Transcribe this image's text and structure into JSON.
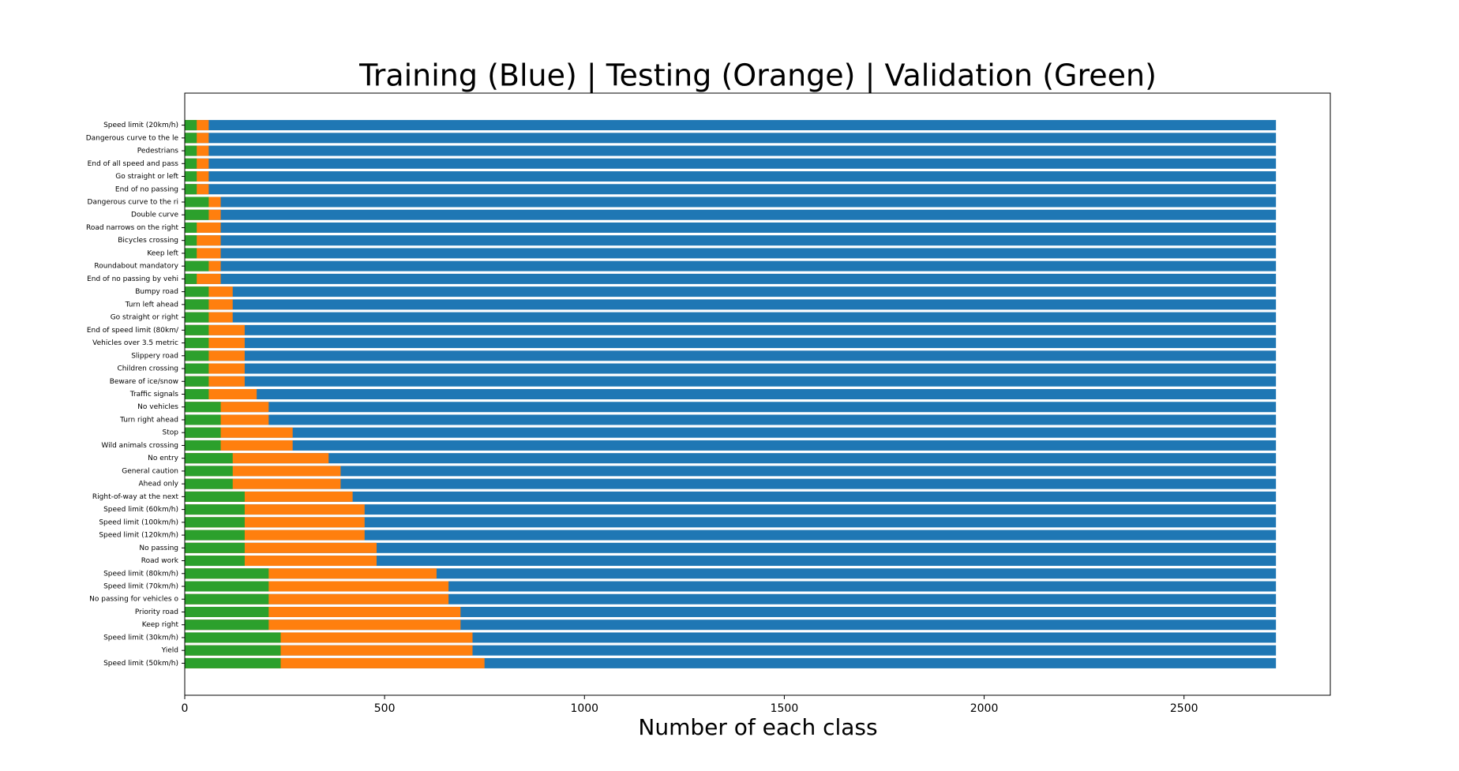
{
  "chart_data": {
    "type": "barh_overlay",
    "title": "Training (Blue) | Testing (Orange) | Validation (Green)",
    "xlabel": "Number of each class",
    "categories": [
      "Speed limit (20km/h)",
      "Dangerous curve to the le",
      "Pedestrians",
      "End of all speed and pass",
      "Go straight or left",
      "End of no passing",
      "Dangerous curve to the ri",
      "Double curve",
      "Road narrows on the right",
      "Bicycles crossing",
      "Keep left",
      "Roundabout mandatory",
      "End of no passing by vehi",
      "Bumpy road",
      "Turn left ahead",
      "Go straight or right",
      "End of speed limit (80km/",
      "Vehicles over 3.5 metric ",
      "Slippery road",
      "Children crossing",
      "Beware of ice/snow",
      "Traffic signals",
      "No vehicles",
      "Turn right ahead",
      "Stop",
      "Wild animals crossing",
      "No entry",
      "General caution",
      "Ahead only",
      "Right-of-way at the next ",
      "Speed limit (60km/h)",
      "Speed limit (100km/h)",
      "Speed limit (120km/h)",
      "No passing",
      "Road work",
      "Speed limit (80km/h)",
      "Speed limit (70km/h)",
      "No passing for vehicles o",
      "Priority road",
      "Keep right",
      "Speed limit (30km/h)",
      "Yield",
      "Speed limit (50km/h)"
    ],
    "series": [
      {
        "color": "#1f77b4",
        "values": [
          2730,
          2730,
          2730,
          2730,
          2730,
          2730,
          2730,
          2730,
          2730,
          2730,
          2730,
          2730,
          2730,
          2730,
          2730,
          2730,
          2730,
          2730,
          2730,
          2730,
          2730,
          2730,
          2730,
          2730,
          2730,
          2730,
          2730,
          2730,
          2730,
          2730,
          2730,
          2730,
          2730,
          2730,
          2730,
          2730,
          2730,
          2730,
          2730,
          2730,
          2730,
          2730,
          2730
        ]
      },
      {
        "color": "#ff7f0e",
        "values": [
          60,
          60,
          60,
          60,
          60,
          60,
          90,
          90,
          90,
          90,
          90,
          90,
          90,
          120,
          120,
          120,
          150,
          150,
          150,
          150,
          150,
          180,
          210,
          210,
          270,
          270,
          360,
          390,
          390,
          420,
          450,
          450,
          450,
          480,
          480,
          630,
          660,
          660,
          690,
          690,
          720,
          720,
          750
        ]
      },
      {
        "color": "#2ca02c",
        "values": [
          30,
          30,
          30,
          30,
          30,
          30,
          60,
          60,
          30,
          30,
          30,
          60,
          30,
          60,
          60,
          60,
          60,
          60,
          60,
          60,
          60,
          60,
          90,
          90,
          90,
          90,
          120,
          120,
          120,
          150,
          150,
          150,
          150,
          150,
          150,
          210,
          210,
          210,
          210,
          210,
          240,
          240,
          240
        ]
      }
    ],
    "xlim": [
      0,
      2866
    ],
    "xticks": [
      0,
      500,
      1000,
      1500,
      2000,
      2500
    ]
  }
}
